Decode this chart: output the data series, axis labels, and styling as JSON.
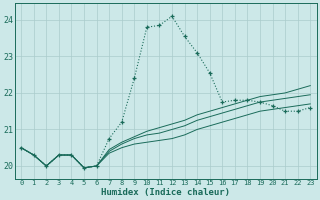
{
  "xlabel": "Humidex (Indice chaleur)",
  "xlim": [
    -0.5,
    23.5
  ],
  "ylim": [
    19.65,
    24.45
  ],
  "yticks": [
    20,
    21,
    22,
    23,
    24
  ],
  "xticks": [
    0,
    1,
    2,
    3,
    4,
    5,
    6,
    7,
    8,
    9,
    10,
    11,
    12,
    13,
    14,
    15,
    16,
    17,
    18,
    19,
    20,
    21,
    22,
    23
  ],
  "bg_color": "#cce8e8",
  "grid_color": "#aacccc",
  "line_color": "#1a6b5a",
  "main_line": [
    20.5,
    20.3,
    20.0,
    20.3,
    20.3,
    19.95,
    20.0,
    20.75,
    21.2,
    22.4,
    23.8,
    23.85,
    24.1,
    23.55,
    23.1,
    22.55,
    21.75,
    21.8,
    21.8,
    21.75,
    21.65,
    21.5,
    21.5,
    21.6
  ],
  "line2": [
    20.5,
    20.3,
    20.0,
    20.3,
    20.3,
    19.95,
    20.0,
    20.35,
    20.5,
    20.6,
    20.65,
    20.7,
    20.75,
    20.85,
    21.0,
    21.1,
    21.2,
    21.3,
    21.4,
    21.5,
    21.55,
    21.6,
    21.65,
    21.7
  ],
  "line3": [
    20.5,
    20.3,
    20.0,
    20.3,
    20.3,
    19.95,
    20.0,
    20.4,
    20.6,
    20.75,
    20.85,
    20.9,
    21.0,
    21.1,
    21.25,
    21.35,
    21.45,
    21.55,
    21.65,
    21.75,
    21.8,
    21.85,
    21.9,
    21.95
  ],
  "line4": [
    20.5,
    20.3,
    20.0,
    20.3,
    20.3,
    19.95,
    20.0,
    20.45,
    20.65,
    20.8,
    20.95,
    21.05,
    21.15,
    21.25,
    21.4,
    21.5,
    21.6,
    21.7,
    21.8,
    21.9,
    21.95,
    22.0,
    22.1,
    22.2
  ]
}
